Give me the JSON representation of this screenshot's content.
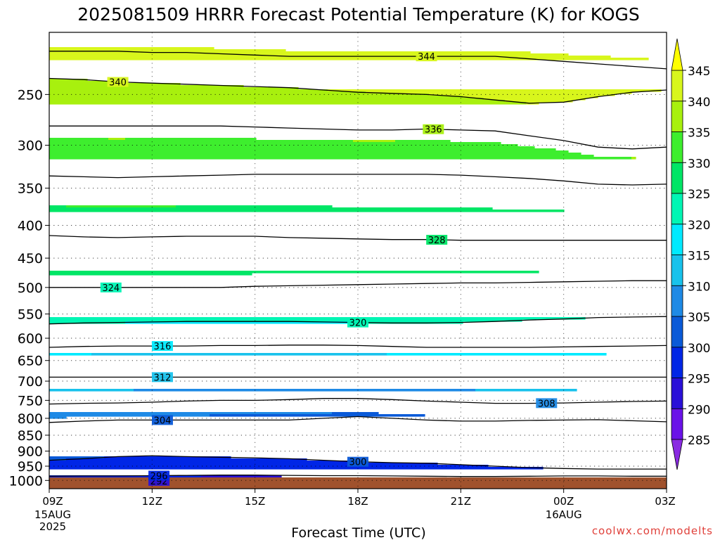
{
  "chart_data": {
    "type": "contour",
    "title": "2025081509 HRRR Forecast Potential Temperature (K) for KOGS",
    "xlabel": "Forecast Time (UTC)",
    "ylabel": "",
    "watermark": "coolwx.com/modelts",
    "x_ticks": [
      {
        "hours": 0,
        "label": "09Z",
        "sub": [
          "15AUG",
          "2025"
        ]
      },
      {
        "hours": 3,
        "label": "12Z",
        "sub": []
      },
      {
        "hours": 6,
        "label": "15Z",
        "sub": []
      },
      {
        "hours": 9,
        "label": "18Z",
        "sub": []
      },
      {
        "hours": 12,
        "label": "21Z",
        "sub": []
      },
      {
        "hours": 15,
        "label": "00Z",
        "sub": [
          "16AUG"
        ]
      },
      {
        "hours": 18,
        "label": "03Z",
        "sub": []
      }
    ],
    "x_range_hours": [
      0,
      18
    ],
    "y_axis": {
      "scale": "log-pressure",
      "units": "hPa",
      "range": [
        1030,
        200
      ]
    },
    "y_ticks": [
      250,
      300,
      350,
      400,
      450,
      500,
      550,
      600,
      650,
      700,
      750,
      800,
      850,
      900,
      950,
      1000
    ],
    "colorbar": {
      "levels": [
        285,
        290,
        295,
        300,
        305,
        310,
        315,
        320,
        325,
        330,
        335,
        340,
        345
      ],
      "colors": [
        "#8a2be2",
        "#6a12e8",
        "#2a10d8",
        "#0026e6",
        "#0a5ad8",
        "#1e8ae6",
        "#18c2ec",
        "#00eaff",
        "#00f6b4",
        "#00e666",
        "#3eee2e",
        "#a8f00e",
        "#d8f61c",
        "#ffff00"
      ]
    },
    "contour_interval": 4,
    "isentropes": [
      {
        "theta": 292,
        "pressure": [
          1003,
          1004,
          1004,
          1002,
          999,
          995,
          995,
          997,
          998,
          998,
          996,
          996,
          996,
          997,
          998,
          998,
          997,
          997,
          996
        ],
        "label": "292",
        "label_hour": 3.2
      },
      {
        "theta": 296,
        "pressure": [
          985,
          984,
          984,
          983,
          982,
          981,
          981,
          982,
          983,
          983,
          984,
          985,
          986,
          986,
          985,
          984,
          984,
          985,
          985
        ],
        "label": "296",
        "label_hour": 3.2
      },
      {
        "theta": 300,
        "pressure": [
          930,
          925,
          918,
          915,
          918,
          920,
          922,
          925,
          930,
          935,
          938,
          940,
          945,
          950,
          955,
          958,
          960,
          960,
          960
        ],
        "label": "300",
        "label_hour": 9.0
      },
      {
        "theta": 304,
        "pressure": [
          812,
          808,
          805,
          805,
          805,
          805,
          805,
          805,
          800,
          795,
          800,
          805,
          808,
          808,
          806,
          805,
          804,
          807,
          810
        ],
        "label": "304",
        "label_hour": 3.3
      },
      {
        "theta": 308,
        "pressure": [
          760,
          758,
          757,
          755,
          752,
          750,
          750,
          748,
          745,
          745,
          748,
          752,
          755,
          758,
          758,
          757,
          755,
          753,
          752
        ],
        "label": "308",
        "label_hour": 14.5
      },
      {
        "theta": 312,
        "pressure": [
          690,
          690,
          690,
          690,
          690,
          690,
          690,
          690,
          690,
          690,
          690,
          690,
          690,
          690,
          690,
          690,
          690,
          690,
          690
        ],
        "label": "312",
        "label_hour": 3.3
      },
      {
        "theta": 316,
        "pressure": [
          620,
          618,
          617,
          617,
          617,
          616,
          616,
          615,
          615,
          616,
          618,
          620,
          620,
          620,
          620,
          619,
          618,
          617,
          616
        ],
        "label": "316",
        "label_hour": 3.3
      },
      {
        "theta": 320,
        "pressure": [
          570,
          568,
          567,
          566,
          565,
          565,
          565,
          565,
          566,
          567,
          568,
          568,
          567,
          565,
          562,
          560,
          557,
          556,
          555
        ],
        "label": "320",
        "label_hour": 9.0
      },
      {
        "theta": 324,
        "pressure": [
          500,
          500,
          500,
          500,
          500,
          500,
          498,
          497,
          496,
          495,
          494,
          493,
          492,
          492,
          491,
          490,
          489,
          488,
          488
        ],
        "label": "324",
        "label_hour": 1.8
      },
      {
        "theta": 328,
        "pressure": [
          415,
          417,
          418,
          417,
          416,
          416,
          416,
          418,
          419,
          420,
          421,
          421,
          422,
          422,
          422,
          422,
          422,
          422,
          422
        ],
        "label": "328",
        "label_hour": 11.3
      },
      {
        "theta": 332,
        "pressure": [
          335,
          336,
          337,
          336,
          335,
          334,
          333,
          333,
          333,
          333,
          333,
          333,
          334,
          336,
          338,
          341,
          345,
          346,
          345
        ],
        "label": "",
        "label_hour": 0
      },
      {
        "theta": 336,
        "pressure": [
          280,
          280,
          280,
          280,
          280,
          280,
          281,
          282,
          283,
          284,
          284,
          283,
          284,
          285,
          290,
          295,
          302,
          304,
          302
        ],
        "label": "336",
        "label_hour": 11.2
      },
      {
        "theta": 340,
        "pressure": [
          236,
          237,
          239,
          240,
          241,
          242,
          243,
          244,
          246,
          248,
          249,
          250,
          252,
          255,
          258,
          257,
          252,
          248,
          246
        ],
        "label": "340",
        "label_hour": 2.0
      },
      {
        "theta": 344,
        "pressure": [
          214,
          214,
          214,
          215,
          215,
          216,
          217,
          218,
          218,
          218,
          218,
          218,
          218,
          218,
          220,
          222,
          224,
          226,
          228
        ],
        "label": "344",
        "label_hour": 11.0
      }
    ]
  }
}
